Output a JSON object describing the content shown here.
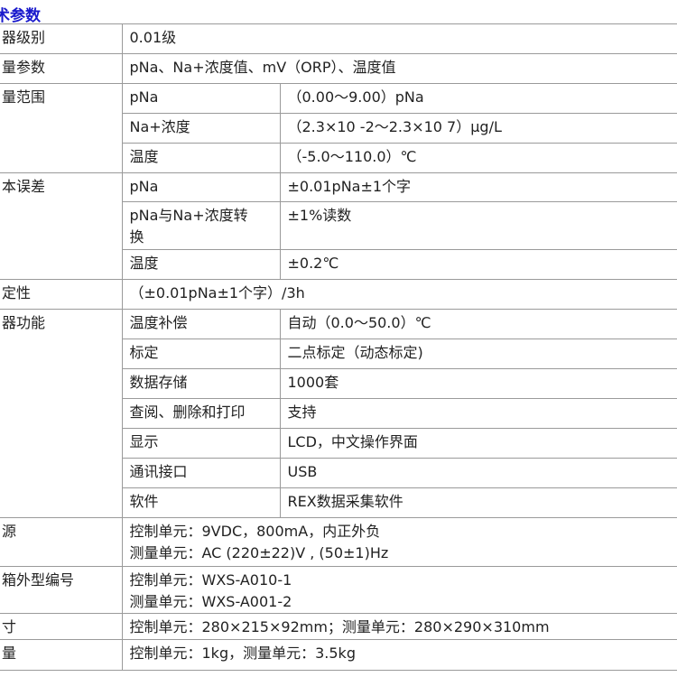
{
  "title": "术参数",
  "rows": {
    "grade": {
      "label": "器级别",
      "value": "0.01级"
    },
    "params": {
      "label": "量参数",
      "value": "pNa、Na+浓度值、mV（ORP）、温度值"
    },
    "range": {
      "label": "量范围",
      "items": [
        {
          "k": "pNa",
          "v": "（0.00～9.00）pNa"
        },
        {
          "k": "Na+浓度",
          "v": "（2.3×10 -2～2.3×10 7）μg/L"
        },
        {
          "k": "温度",
          "v": "（-5.0～110.0）℃"
        }
      ]
    },
    "error": {
      "label": "本误差",
      "items": [
        {
          "k": "pNa",
          "v": "±0.01pNa±1个字"
        },
        {
          "k": "pNa与Na+浓度转换",
          "v": "±1%读数"
        },
        {
          "k": "温度",
          "v": "±0.2℃"
        }
      ]
    },
    "stability": {
      "label": "定性",
      "value": "（±0.01pNa±1个字）/3h"
    },
    "functions": {
      "label": "器功能",
      "items": [
        {
          "k": "温度补偿",
          "v": "自动（0.0～50.0）℃"
        },
        {
          "k": "标定",
          "v": "二点标定（动态标定)"
        },
        {
          "k": "数据存储",
          "v": "1000套"
        },
        {
          "k": "查阅、删除和打印",
          "v": "支持"
        },
        {
          "k": "显示",
          "v": "LCD，中文操作界面"
        },
        {
          "k": "通讯接口",
          "v": "USB"
        },
        {
          "k": "软件",
          "v": "REX数据采集软件"
        }
      ]
    },
    "power": {
      "label": "源",
      "line1": "控制单元：9VDC，800mA，内正外负",
      "line2": "测量单元：AC (220±22)V , (50±1)Hz"
    },
    "case": {
      "label": "箱外型编号",
      "line1": "控制单元：WXS-A010-1",
      "line2": "测量单元：WXS-A001-2"
    },
    "size": {
      "label": "寸",
      "value": "控制单元：280×215×92mm；测量单元：280×290×310mm"
    },
    "weight": {
      "label": "量",
      "value": "控制单元：1kg，测量单元：3.5kg"
    }
  }
}
